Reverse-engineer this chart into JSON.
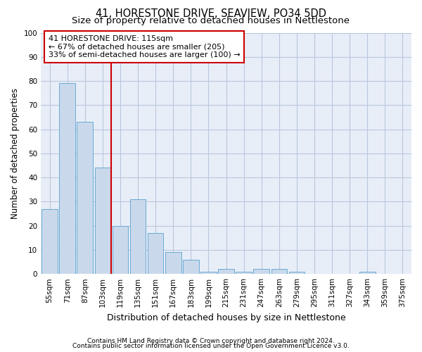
{
  "title": "41, HORESTONE DRIVE, SEAVIEW, PO34 5DD",
  "subtitle": "Size of property relative to detached houses in Nettlestone",
  "xlabel": "Distribution of detached houses by size in Nettlestone",
  "ylabel": "Number of detached properties",
  "categories": [
    "55sqm",
    "71sqm",
    "87sqm",
    "103sqm",
    "119sqm",
    "135sqm",
    "151sqm",
    "167sqm",
    "183sqm",
    "199sqm",
    "215sqm",
    "231sqm",
    "247sqm",
    "263sqm",
    "279sqm",
    "295sqm",
    "311sqm",
    "327sqm",
    "343sqm",
    "359sqm",
    "375sqm"
  ],
  "values": [
    27,
    79,
    63,
    44,
    20,
    31,
    17,
    9,
    6,
    1,
    2,
    1,
    2,
    2,
    1,
    0,
    0,
    0,
    1,
    0,
    0
  ],
  "bar_color": "#c9d9eb",
  "bar_edge_color": "#6aaad4",
  "vline_color": "#cc0000",
  "annotation_line1": "41 HORESTONE DRIVE: 115sqm",
  "annotation_line2": "← 67% of detached houses are smaller (205)",
  "annotation_line3": "33% of semi-detached houses are larger (100) →",
  "annotation_box_color": "#ffffff",
  "annotation_box_edge_color": "#cc0000",
  "ylim": [
    0,
    100
  ],
  "yticks": [
    0,
    10,
    20,
    30,
    40,
    50,
    60,
    70,
    80,
    90,
    100
  ],
  "grid_color": "#b8c8dc",
  "bg_color": "#e8eef8",
  "footer1": "Contains HM Land Registry data © Crown copyright and database right 2024.",
  "footer2": "Contains public sector information licensed under the Open Government Licence v3.0.",
  "title_fontsize": 10.5,
  "subtitle_fontsize": 9.5,
  "xlabel_fontsize": 9,
  "ylabel_fontsize": 8.5,
  "tick_fontsize": 7.5,
  "annotation_fontsize": 8,
  "footer_fontsize": 6.5
}
